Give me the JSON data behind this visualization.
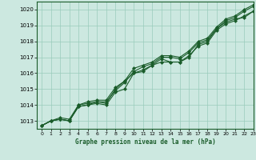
{
  "xlabel": "Graphe pression niveau de la mer (hPa)",
  "ylim": [
    1012.5,
    1020.5
  ],
  "xlim": [
    -0.5,
    23
  ],
  "yticks": [
    1013,
    1014,
    1015,
    1016,
    1017,
    1018,
    1019,
    1020
  ],
  "xticks": [
    0,
    1,
    2,
    3,
    4,
    5,
    6,
    7,
    8,
    9,
    10,
    11,
    12,
    13,
    14,
    15,
    16,
    17,
    18,
    19,
    20,
    21,
    22,
    23
  ],
  "background_color": "#cce8e0",
  "grid_color": "#99ccbb",
  "line_color": "#1a5c2a",
  "marker": "D",
  "markersize": 2.0,
  "linewidth": 0.8,
  "series": [
    [
      1012.7,
      1013.0,
      1013.1,
      1013.0,
      1013.9,
      1014.0,
      1014.1,
      1014.0,
      1014.8,
      1015.0,
      1016.0,
      1016.1,
      1016.5,
      1016.9,
      1016.7,
      1016.7,
      1017.0,
      1017.8,
      1018.0,
      1018.8,
      1019.2,
      1019.4,
      1019.5,
      1019.9
    ],
    [
      1012.7,
      1013.0,
      1013.1,
      1013.0,
      1013.9,
      1014.0,
      1014.2,
      1014.1,
      1015.0,
      1015.5,
      1016.0,
      1016.2,
      1016.5,
      1016.7,
      1016.7,
      1016.7,
      1017.1,
      1017.7,
      1017.9,
      1018.7,
      1019.1,
      1019.3,
      1019.6,
      1019.9
    ],
    [
      1012.7,
      1013.0,
      1013.1,
      1013.0,
      1014.0,
      1014.1,
      1014.2,
      1014.2,
      1014.9,
      1015.4,
      1016.1,
      1016.4,
      1016.6,
      1017.0,
      1017.0,
      1016.9,
      1017.3,
      1017.9,
      1018.1,
      1018.8,
      1019.3,
      1019.5,
      1019.9,
      1020.2
    ],
    [
      1012.7,
      1013.0,
      1013.2,
      1013.1,
      1014.0,
      1014.2,
      1014.3,
      1014.3,
      1015.1,
      1015.5,
      1016.3,
      1016.5,
      1016.7,
      1017.1,
      1017.1,
      1017.0,
      1017.4,
      1018.0,
      1018.2,
      1018.9,
      1019.4,
      1019.6,
      1020.0,
      1020.3
    ]
  ]
}
